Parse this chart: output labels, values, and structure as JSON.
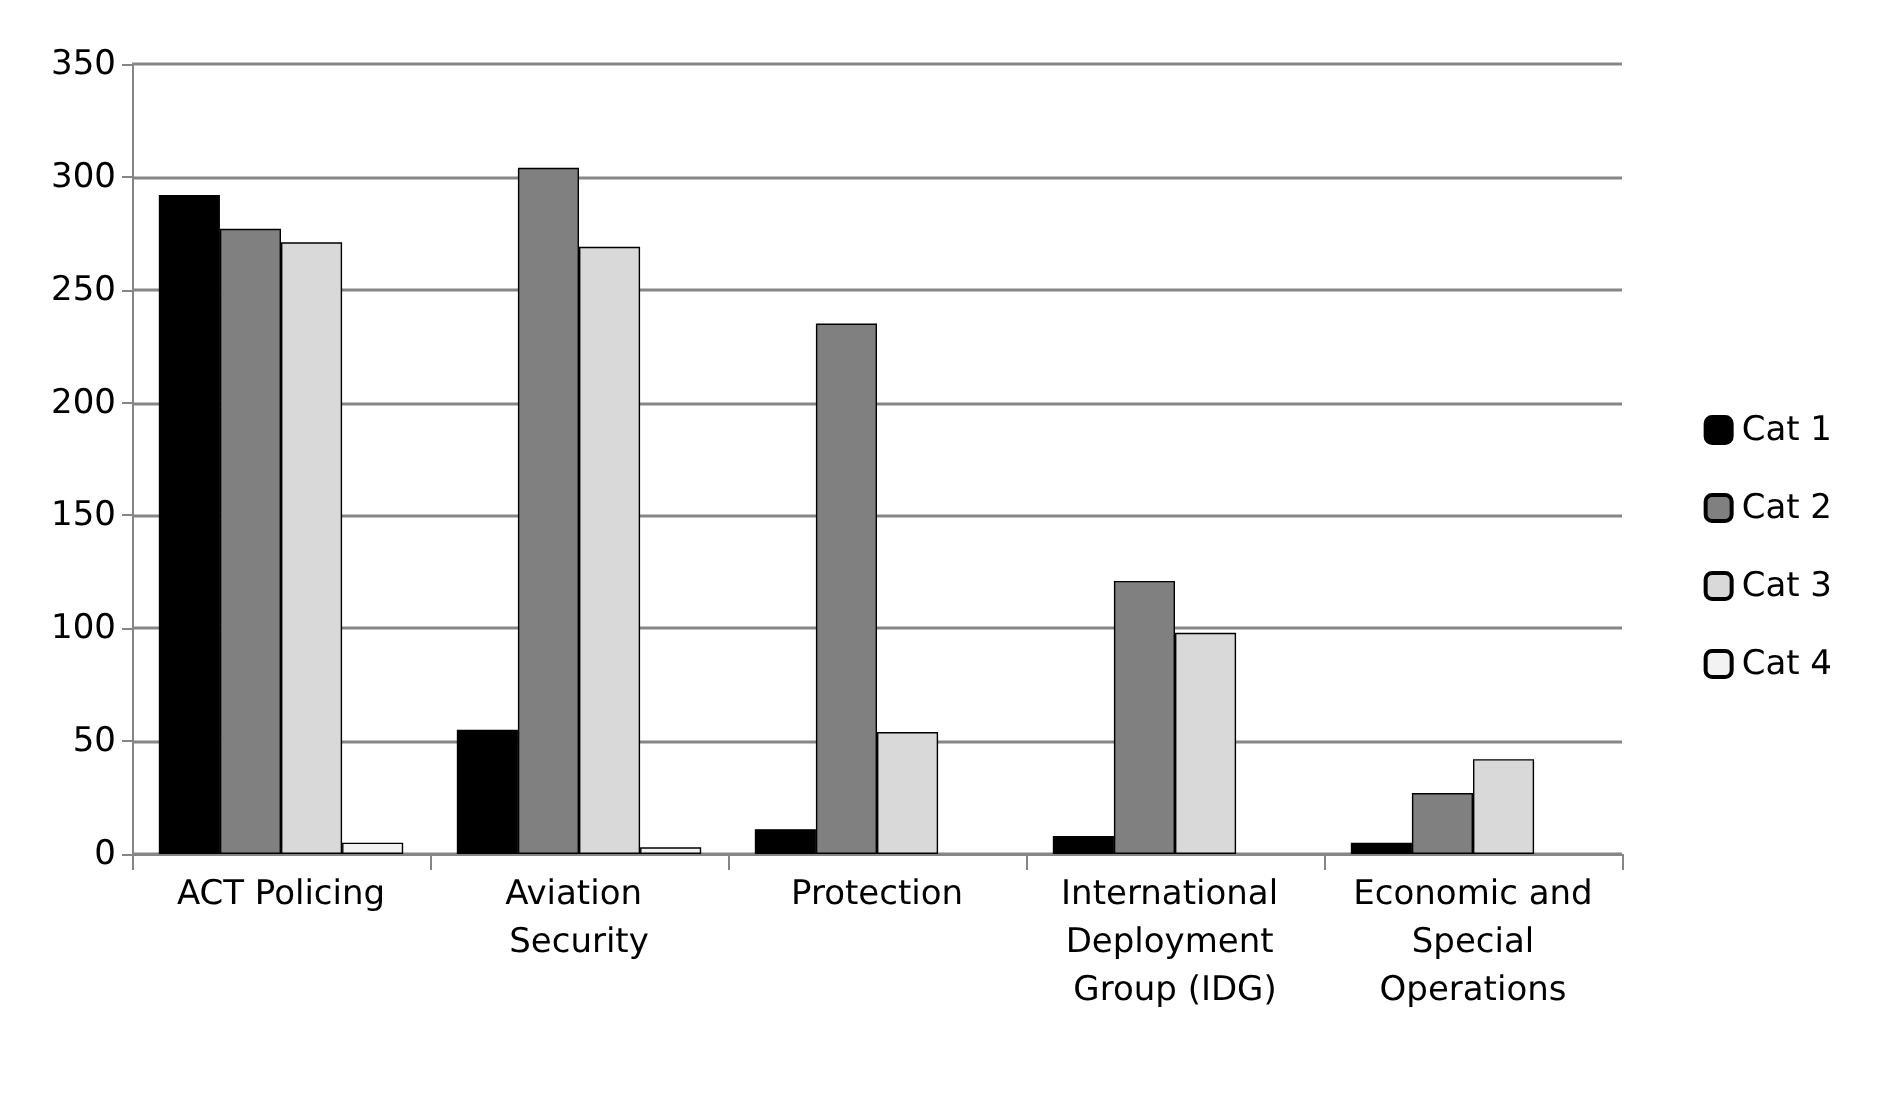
{
  "chart_data": {
    "type": "bar",
    "categories": [
      "ACT Policing",
      "Aviation Security",
      "Protection",
      "International Deployment Group (IDG)",
      "Economic and Special Operations"
    ],
    "series": [
      {
        "name": "Cat 1",
        "color": "#000000",
        "values": [
          292,
          55,
          11,
          8,
          5
        ]
      },
      {
        "name": "Cat 2",
        "color": "#808080",
        "values": [
          277,
          304,
          235,
          121,
          27
        ]
      },
      {
        "name": "Cat 3",
        "color": "#d9d9d9",
        "values": [
          271,
          269,
          54,
          98,
          42
        ]
      },
      {
        "name": "Cat 4",
        "color": "#f2f2f2",
        "values": [
          5,
          3,
          null,
          null,
          null
        ]
      }
    ],
    "ylim": [
      0,
      350
    ],
    "yticks": [
      0,
      50,
      100,
      150,
      200,
      250,
      300,
      350
    ],
    "grid": "y",
    "legend": "right"
  }
}
